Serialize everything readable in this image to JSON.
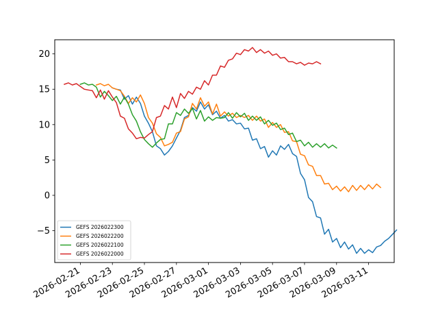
{
  "chart_data": {
    "type": "line",
    "title": "",
    "xlabel": "",
    "ylabel": "",
    "x_start": "2026-02-20",
    "x_step_days": 0.25,
    "xlim_days_from_start": [
      -0.6,
      20.6
    ],
    "ylim": [
      -9.5,
      22.0
    ],
    "x_tick_days": [
      1,
      3,
      5,
      7,
      9,
      11,
      13,
      15,
      17,
      19
    ],
    "x_tick_labels": [
      "2026-02-21",
      "2026-02-23",
      "2026-02-25",
      "2026-02-27",
      "2026-03-01",
      "2026-03-03",
      "2026-03-05",
      "2026-03-07",
      "2026-03-09",
      "2026-03-11"
    ],
    "y_ticks": [
      -5,
      0,
      5,
      10,
      15,
      20
    ],
    "y_tick_labels": [
      "−5",
      "0",
      "5",
      "10",
      "15",
      "20"
    ],
    "grid": false,
    "legend_position": "lower-left",
    "series": [
      {
        "name": "GEFS 2026022300",
        "color": "#1f77b4",
        "start_index": 12,
        "values": [
          15.2,
          15.0,
          14.9,
          13.6,
          14.1,
          12.9,
          13.9,
          13.0,
          11.2,
          10.2,
          9.0,
          7.0,
          6.6,
          5.7,
          6.2,
          7.0,
          8.1,
          9.2,
          11.0,
          11.3,
          12.4,
          11.9,
          13.2,
          12.2,
          12.8,
          11.4,
          11.9,
          10.9,
          11.3,
          10.5,
          10.7,
          10.1,
          10.2,
          9.4,
          9.5,
          7.8,
          8.0,
          6.6,
          6.9,
          5.4,
          6.3,
          5.7,
          7.0,
          6.5,
          7.2,
          5.9,
          5.5,
          3.1,
          2.2,
          -0.3,
          -0.9,
          -3.0,
          -3.2,
          -5.5,
          -4.8,
          -6.6,
          -6.1,
          -7.4,
          -6.6,
          -7.6,
          -7.0,
          -8.2,
          -7.5,
          -8.2,
          -7.7,
          -8.1,
          -7.3,
          -7.1,
          -6.5,
          -6.1,
          -5.5,
          -4.9
        ]
      },
      {
        "name": "GEFS 2026022200",
        "color": "#ff7f0e",
        "start_index": 8,
        "values": [
          15.6,
          15.8,
          15.5,
          15.7,
          15.2,
          15.0,
          14.8,
          14.0,
          13.0,
          13.8,
          13.2,
          14.2,
          13.0,
          11.0,
          10.2,
          8.7,
          8.2,
          7.0,
          7.2,
          7.5,
          8.8,
          9.0,
          10.8,
          11.1,
          13.0,
          12.2,
          13.8,
          12.6,
          13.2,
          11.5,
          12.9,
          11.2,
          11.8,
          11.2,
          11.6,
          11.0,
          11.3,
          11.0,
          11.3,
          10.6,
          11.2,
          10.5,
          10.8,
          9.6,
          10.3,
          9.6,
          10.0,
          8.9,
          9.0,
          7.7,
          7.6,
          5.8,
          5.6,
          4.3,
          4.1,
          2.8,
          2.8,
          1.6,
          1.7,
          0.8,
          1.3,
          0.6,
          1.2,
          0.5,
          1.4,
          0.7,
          1.4,
          0.8,
          1.5,
          0.9,
          1.6,
          1.1
        ]
      },
      {
        "name": "GEFS 2026022100",
        "color": "#2ca02c",
        "start_index": 4,
        "values": [
          15.7,
          15.9,
          15.6,
          15.7,
          15.3,
          13.9,
          14.7,
          14.1,
          13.4,
          14.0,
          12.9,
          13.9,
          12.9,
          11.4,
          10.5,
          9.0,
          7.9,
          7.3,
          6.8,
          7.4,
          7.9,
          8.0,
          10.1,
          10.1,
          11.7,
          11.3,
          12.2,
          11.6,
          12.3,
          10.8,
          12.0,
          10.5,
          11.1,
          10.6,
          11.0,
          10.9,
          11.0,
          11.7,
          10.9,
          11.7,
          11.1,
          11.6,
          10.6,
          11.2,
          10.6,
          11.1,
          10.1,
          10.6,
          9.9,
          10.2,
          9.3,
          9.5,
          8.6,
          8.8,
          7.6,
          7.8,
          7.0,
          7.5,
          6.8,
          7.3,
          6.8,
          7.3,
          6.7,
          7.1,
          6.7
        ]
      },
      {
        "name": "GEFS 2026022000",
        "color": "#d62728",
        "start_index": 0,
        "values": [
          15.7,
          15.9,
          15.6,
          15.8,
          15.4,
          15.0,
          14.9,
          14.8,
          13.8,
          14.9,
          13.6,
          14.8,
          13.9,
          13.1,
          11.2,
          10.9,
          9.4,
          8.8,
          8.0,
          8.2,
          8.1,
          8.6,
          9.0,
          11.0,
          11.2,
          12.7,
          12.2,
          13.9,
          12.4,
          14.4,
          13.7,
          14.7,
          14.3,
          15.3,
          15.0,
          16.2,
          15.6,
          17.0,
          17.0,
          18.3,
          18.1,
          19.1,
          19.3,
          20.1,
          19.9,
          20.6,
          20.4,
          20.9,
          20.2,
          20.6,
          20.1,
          20.4,
          19.8,
          20.0,
          19.4,
          19.5,
          18.9,
          18.9,
          18.6,
          18.8,
          18.4,
          18.7,
          18.6,
          18.9,
          18.6
        ]
      }
    ]
  }
}
